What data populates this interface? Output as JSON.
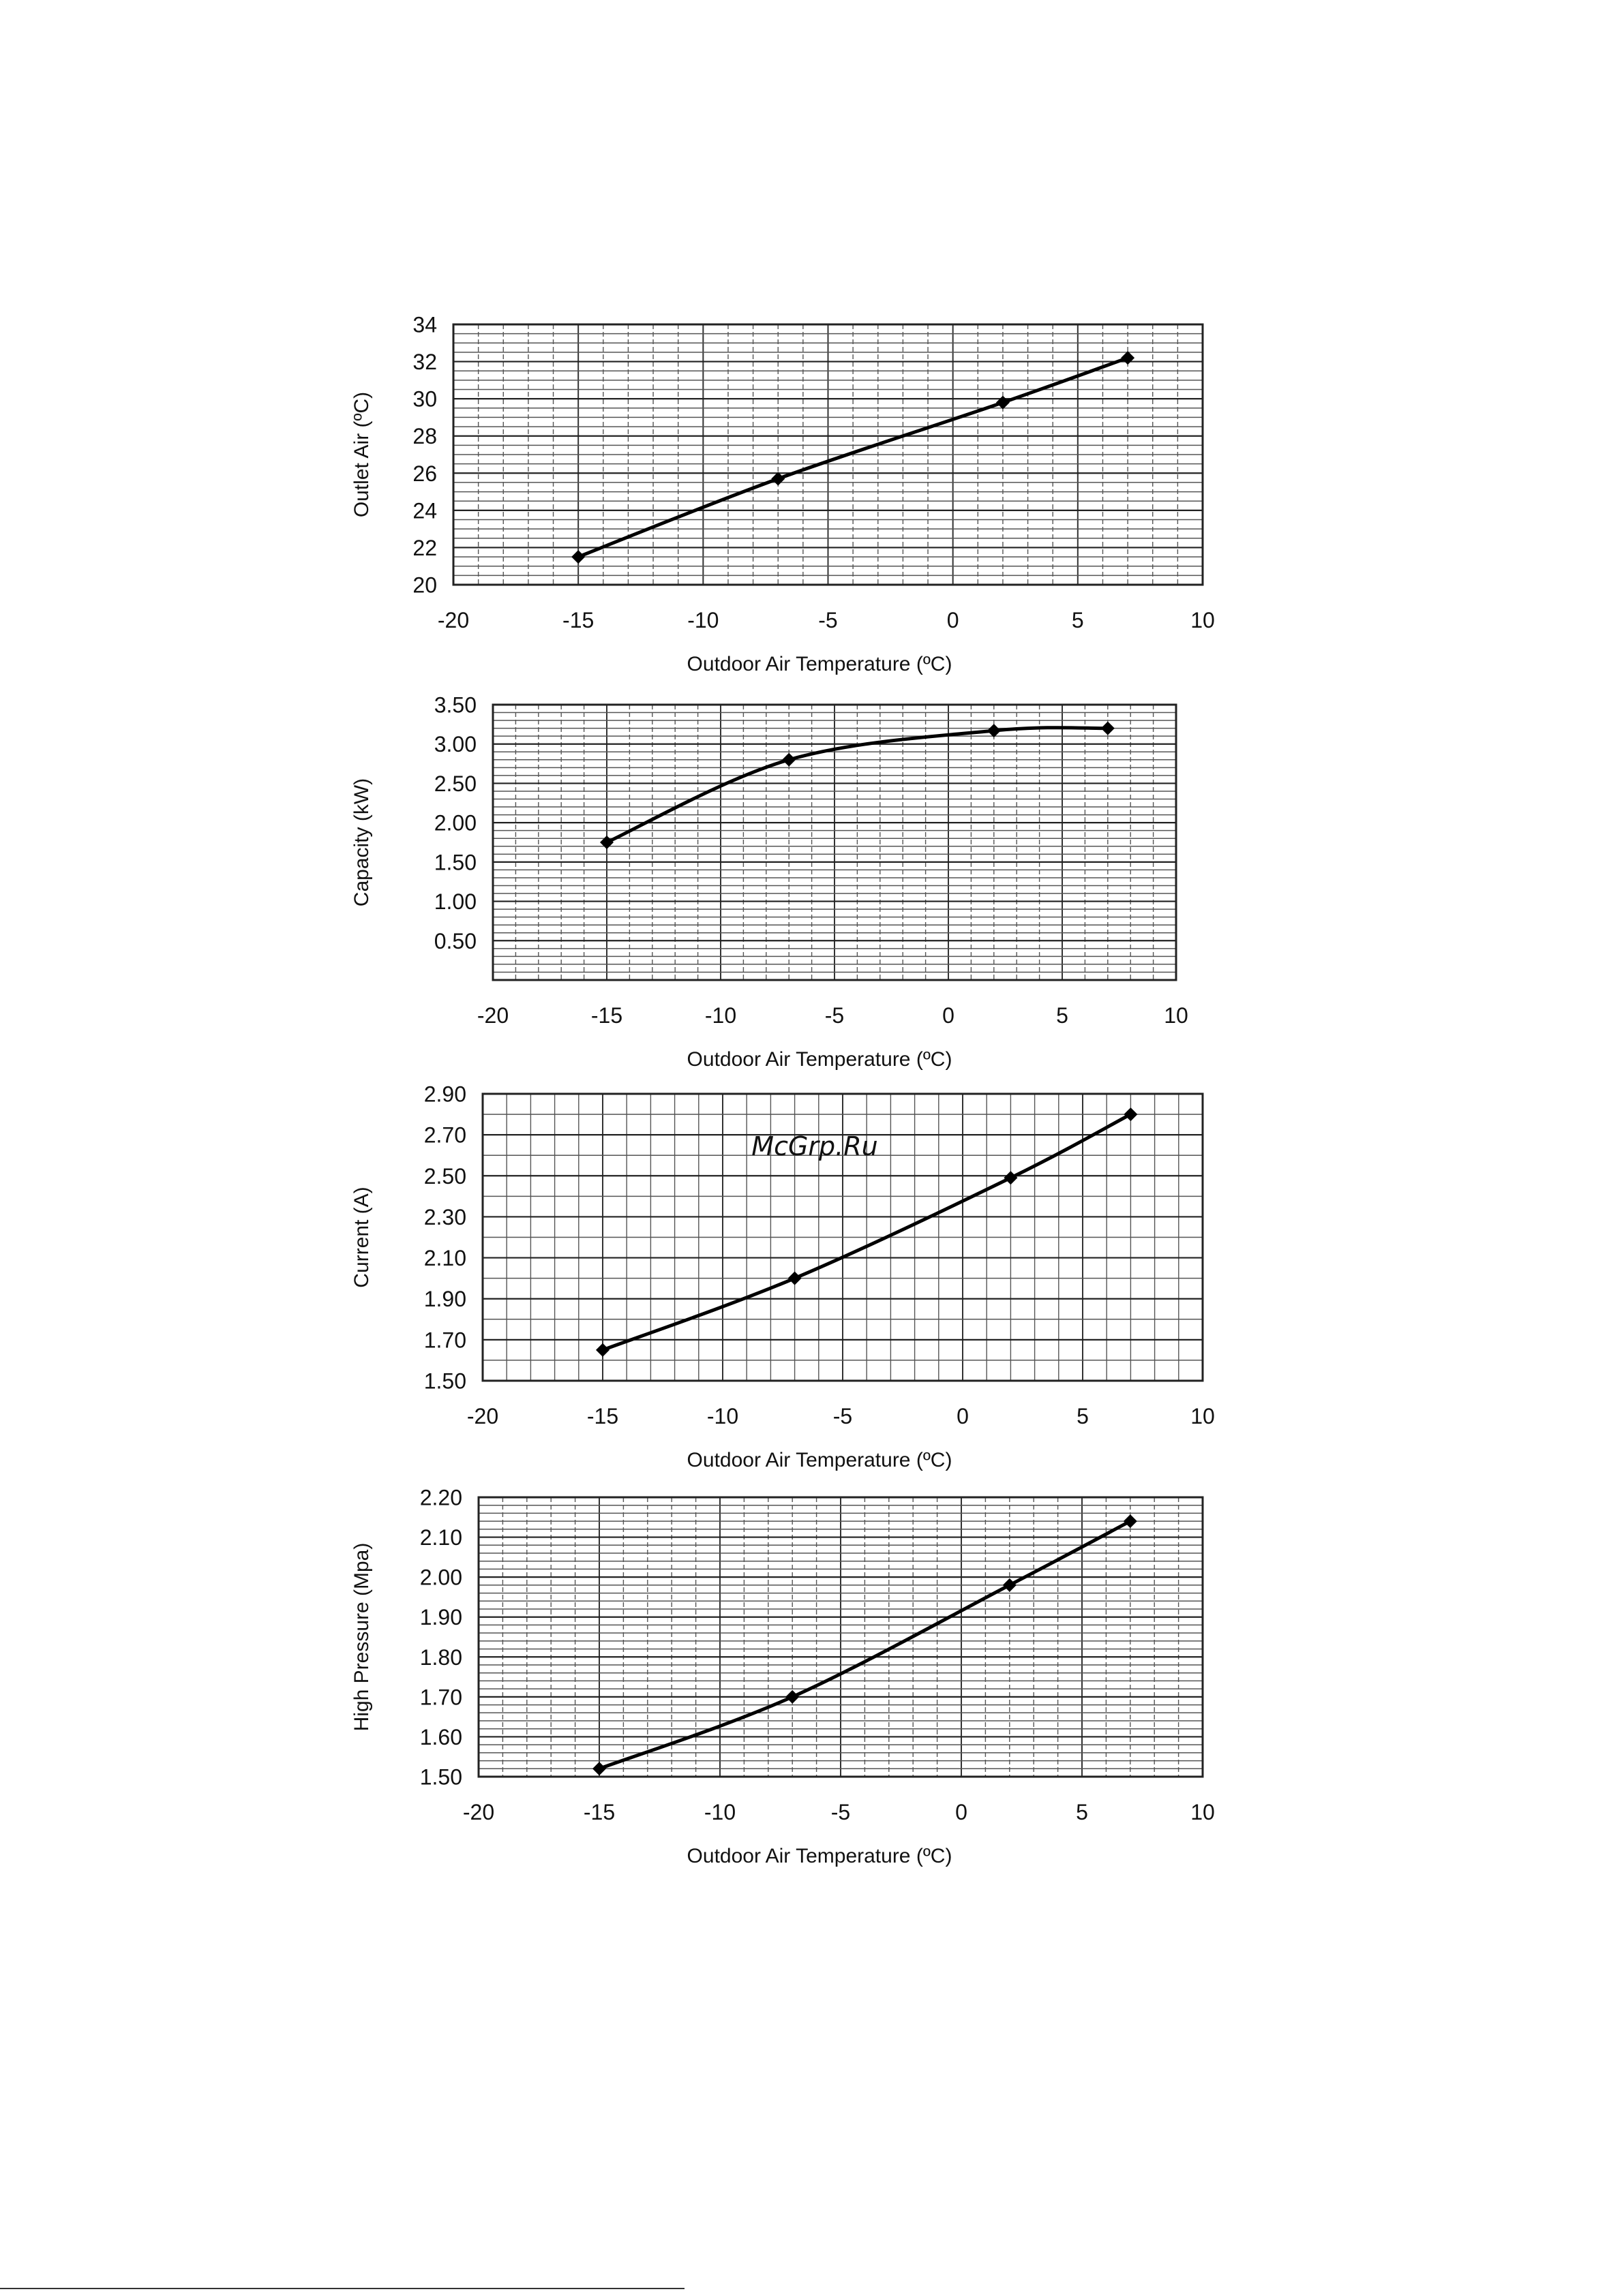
{
  "watermark": "McGrp.Ru",
  "colors": {
    "watermark": "#d23232",
    "series_line": "#000000",
    "grid": "#555555",
    "frame": "#222222"
  },
  "chart_data": [
    {
      "type": "line",
      "xlabel": "Outdoor Air Temperature (ºC)",
      "ylabel": "Outlet Air (ºC)",
      "xlim": [
        -20,
        10
      ],
      "ylim": [
        20,
        34
      ],
      "xticks": [
        "-20",
        "-15",
        "-10",
        "-5",
        "0",
        "5",
        "10"
      ],
      "yticks": [
        "20",
        "22",
        "24",
        "26",
        "28",
        "30",
        "32",
        "34"
      ],
      "grid": true,
      "series": [
        {
          "x": [
            -15,
            -7,
            2,
            7
          ],
          "y": [
            21.5,
            25.7,
            29.8,
            32.2
          ]
        }
      ]
    },
    {
      "type": "line",
      "xlabel": "Outdoor Air Temperature (ºC)",
      "ylabel": "Capacity (kW)",
      "xlim": [
        -20,
        10
      ],
      "ylim": [
        0,
        3.5
      ],
      "xticks": [
        "-20",
        "-15",
        "-10",
        "-5",
        "0",
        "5",
        "10"
      ],
      "yticks": [
        "0.50",
        "1.00",
        "1.50",
        "2.00",
        "2.50",
        "3.00",
        "3.50"
      ],
      "grid": true,
      "series": [
        {
          "x": [
            -15,
            -7,
            2,
            7
          ],
          "y": [
            1.75,
            2.8,
            3.17,
            3.2
          ]
        }
      ]
    },
    {
      "type": "line",
      "xlabel": "Outdoor Air Temperature (ºC)",
      "ylabel": "Current (A)",
      "xlim": [
        -20,
        10
      ],
      "ylim": [
        1.5,
        2.9
      ],
      "xticks": [
        "-20",
        "-15",
        "-10",
        "-5",
        "0",
        "5",
        "10"
      ],
      "yticks": [
        "1.50",
        "1.70",
        "1.90",
        "2.10",
        "2.30",
        "2.50",
        "2.70",
        "2.90"
      ],
      "grid": true,
      "series": [
        {
          "x": [
            -15,
            -7,
            2,
            7
          ],
          "y": [
            1.65,
            2.0,
            2.49,
            2.8
          ]
        }
      ]
    },
    {
      "type": "line",
      "xlabel": "Outdoor Air Temperature (ºC)",
      "ylabel": "High Pressure (Mpa)",
      "xlim": [
        -20,
        10
      ],
      "ylim": [
        1.5,
        2.2
      ],
      "xticks": [
        "-20",
        "-15",
        "-10",
        "-5",
        "0",
        "5",
        "10"
      ],
      "yticks": [
        "1.50",
        "1.60",
        "1.70",
        "1.80",
        "1.90",
        "2.00",
        "2.10",
        "2.20"
      ],
      "grid": true,
      "series": [
        {
          "x": [
            -15,
            -7,
            2,
            7
          ],
          "y": [
            1.52,
            1.7,
            1.98,
            2.14
          ]
        }
      ]
    }
  ]
}
